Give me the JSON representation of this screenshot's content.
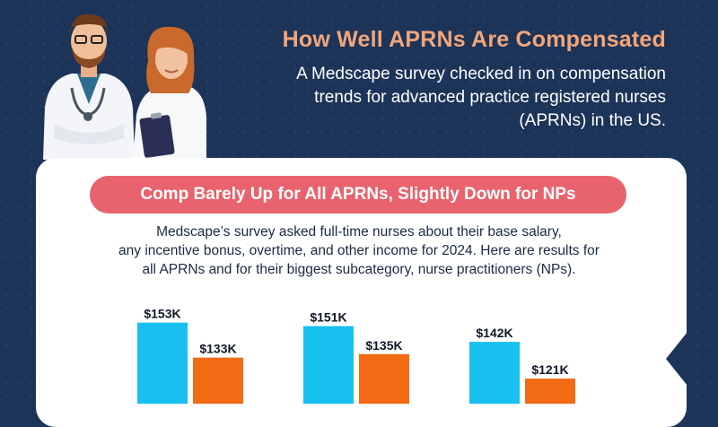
{
  "header": {
    "title": "How Well APRNs Are Compensated",
    "subtitle_lines": [
      "A Medscape survey checked in on compensation",
      "trends for advanced practice registered nurses",
      "(APRNs) in the US."
    ]
  },
  "section": {
    "pill_title": "Comp Barely Up for All APRNs, Slightly Down for NPs",
    "description_lines": [
      "Medscape’s survey asked full-time nurses about their base salary,",
      "any incentive bonus, overtime, and other income for 2024. Here are results for",
      "all APRNs and for their biggest subcategory, nurse practitioners (NPs)."
    ]
  },
  "colors": {
    "background": "#1d3459",
    "title_accent": "#f2a67a",
    "pill": "#e8636d",
    "series_blue": "#18c0f0",
    "series_orange": "#f26a14"
  },
  "icons": [
    "male-nurse-illustration",
    "female-nurse-illustration"
  ],
  "chart_data": {
    "type": "bar",
    "groups": [
      {
        "values": [
          153,
          133
        ],
        "labels": [
          "$153K",
          "$133K"
        ]
      },
      {
        "values": [
          151,
          135
        ],
        "labels": [
          "$151K",
          "$135K"
        ]
      },
      {
        "values": [
          142,
          121
        ],
        "labels": [
          "$142K",
          "$121K"
        ]
      }
    ],
    "series_colors": [
      "#18c0f0",
      "#f26a14"
    ],
    "unit": "$K"
  }
}
